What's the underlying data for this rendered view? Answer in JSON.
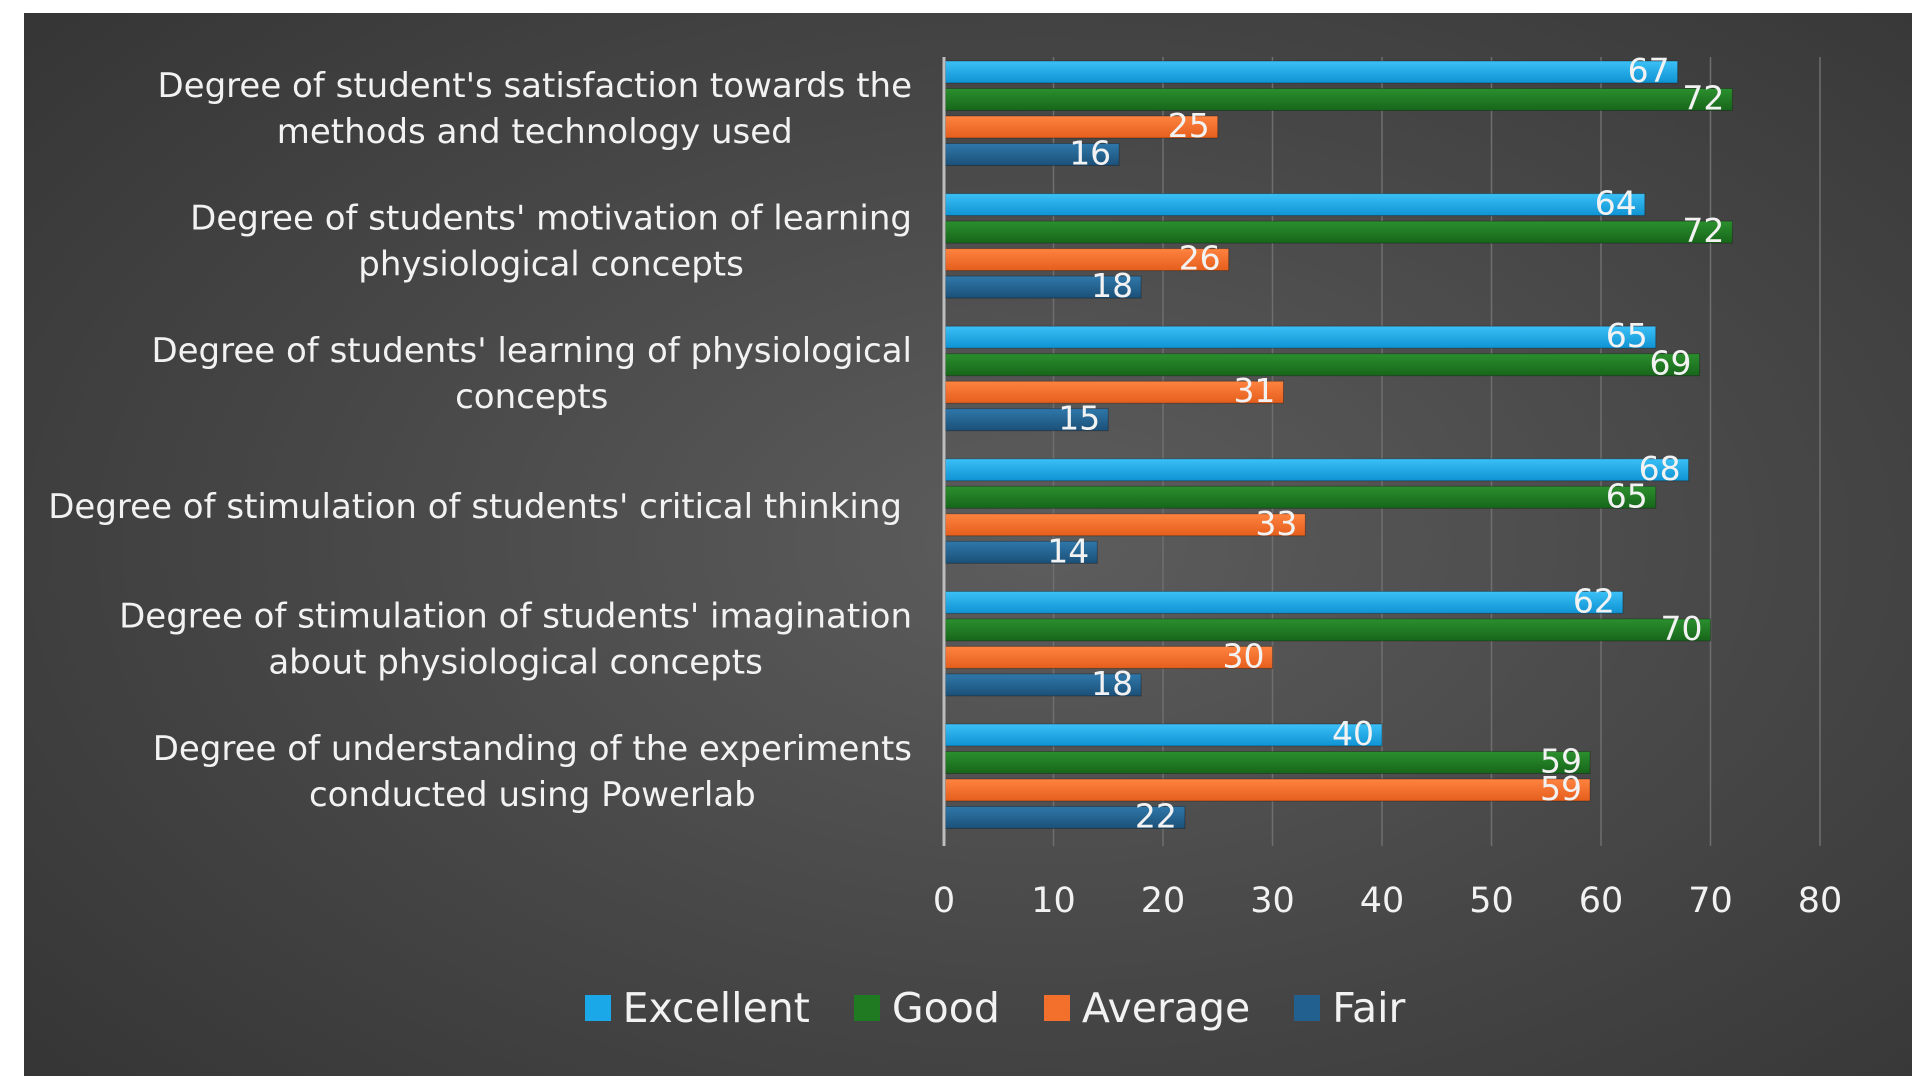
{
  "chart_data": {
    "type": "bar",
    "orientation": "horizontal",
    "categories": [
      [
        "Degree of student's satisfaction towards the",
        "methods and technology used"
      ],
      [
        "Degree of students' motivation of learning",
        "physiological concepts"
      ],
      [
        "Degree of students' learning of physiological",
        "concepts"
      ],
      [
        "Degree of stimulation of students' critical thinking"
      ],
      [
        "Degree of stimulation of students' imagination",
        "about physiological concepts"
      ],
      [
        "Degree of understanding of the experiments",
        "conducted using Powerlab"
      ]
    ],
    "series": [
      {
        "name": "Excellent",
        "color": "#1aa8e8",
        "values": [
          67,
          64,
          65,
          68,
          62,
          40
        ]
      },
      {
        "name": "Good",
        "color": "#1f7a22",
        "values": [
          72,
          72,
          69,
          65,
          70,
          59
        ]
      },
      {
        "name": "Average",
        "color": "#f36f2c",
        "values": [
          25,
          26,
          31,
          33,
          30,
          59
        ]
      },
      {
        "name": "Fair",
        "color": "#22618f",
        "values": [
          16,
          18,
          15,
          14,
          18,
          22
        ]
      }
    ],
    "xlim": [
      0,
      80
    ],
    "xticks": [
      "0",
      "10",
      "20",
      "30",
      "40",
      "50",
      "60",
      "70",
      "80"
    ],
    "grid": true,
    "legend_position": "bottom",
    "data_labels": true
  }
}
